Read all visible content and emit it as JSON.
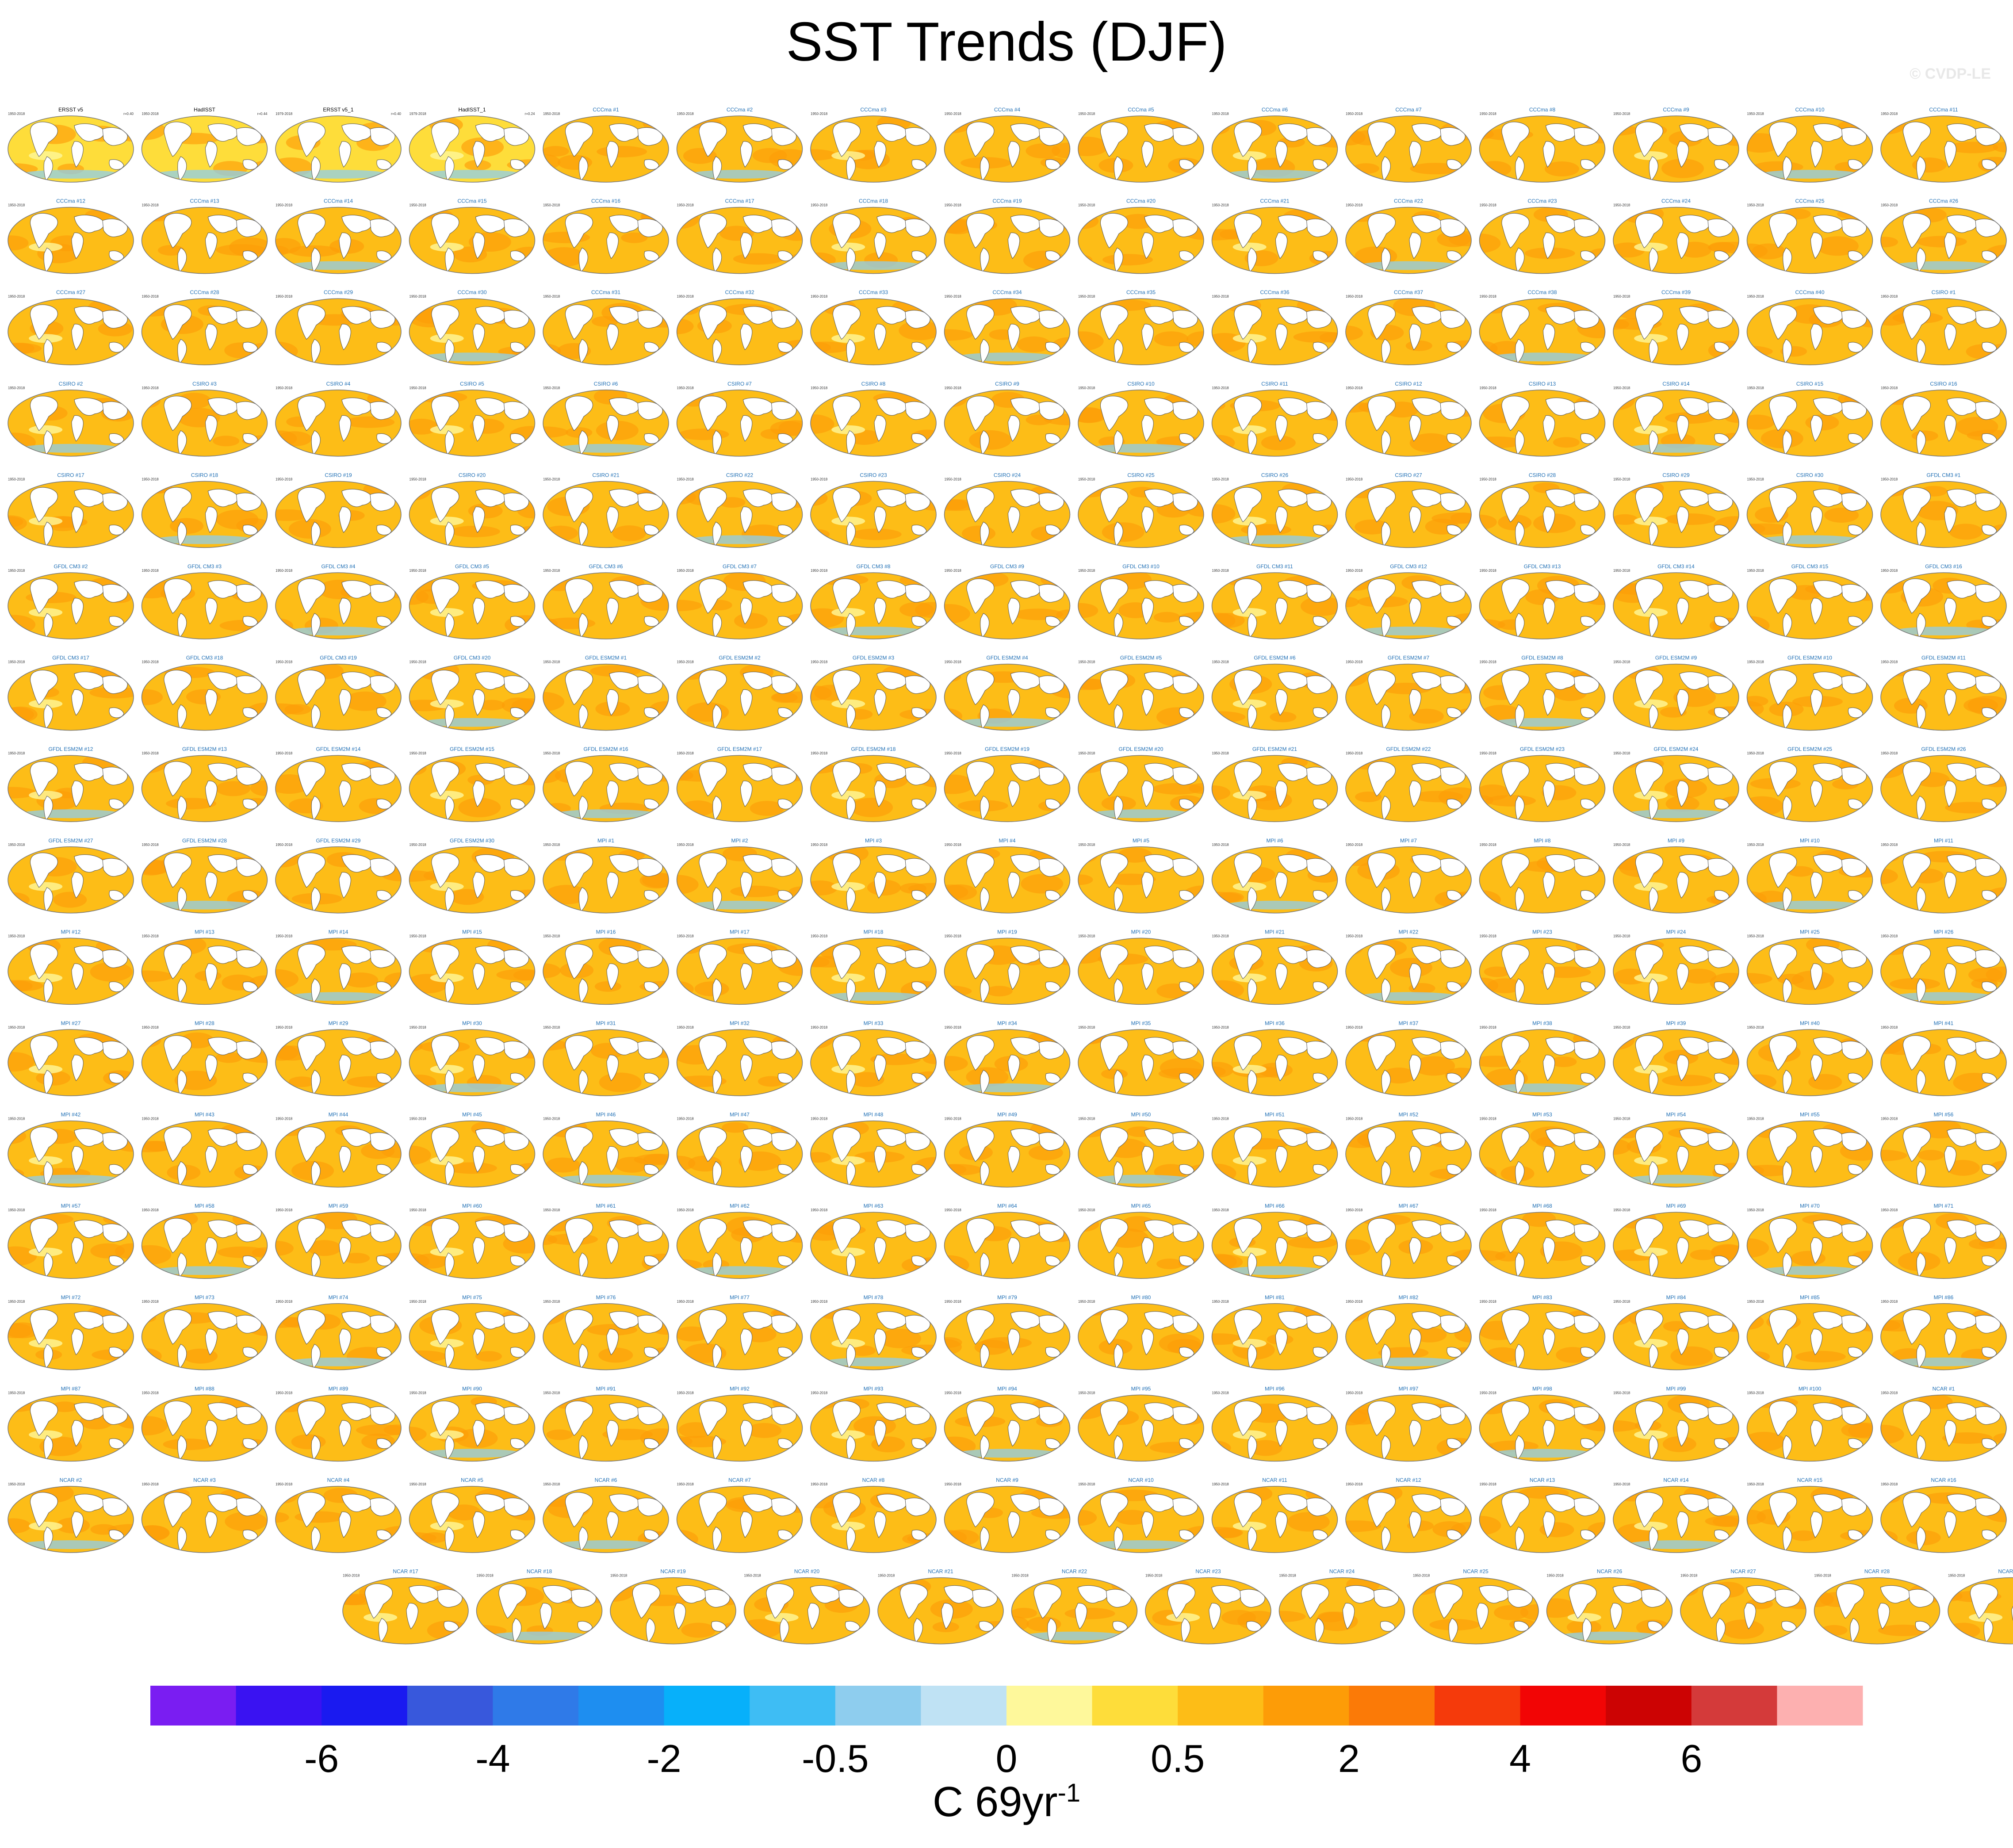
{
  "page": {
    "title": "SST Trends (DJF)",
    "copyright": "© CVDP-LE",
    "unit_prefix": "C 69yr",
    "unit_sup": "-1"
  },
  "colors": {
    "land": "#ffffff",
    "coast": "#555555",
    "obs_label": "#000000",
    "model_label": "#1f6fb5",
    "model_label_light": "#d9c24a"
  },
  "panels": {
    "observations": [
      {
        "label": "ERSST v5",
        "years": "1950-2018",
        "value": "0.40"
      },
      {
        "label": "HadISST",
        "years": "1950-2018",
        "value": "0.44"
      },
      {
        "label": "ERSST v5_1",
        "years": "1979-2018",
        "value": "0.40"
      },
      {
        "label": "HadISST_1",
        "years": "1979-2018",
        "value": "0.24"
      }
    ],
    "ensembles": [
      {
        "name": "CCCma",
        "count": 40,
        "years": "1950-2018"
      },
      {
        "name": "CSIRO",
        "count": 30,
        "years": "1950-2018"
      },
      {
        "name": "GFDL CM3",
        "count": 20,
        "years": "1950-2018"
      },
      {
        "name": "GFDL ESM2M",
        "count": 30,
        "years": "1950-2018"
      },
      {
        "name": "MPI",
        "count": 100,
        "years": "1950-2018"
      },
      {
        "name": "NCAR",
        "count": 40,
        "years": "1950-2018"
      },
      {
        "name": "SMHI_KNMI",
        "count": 16,
        "years": "1950-2018"
      }
    ],
    "columns": 15
  },
  "chart_data": {
    "type": "heatmap",
    "title": "SST Trends (DJF)",
    "colorbar": {
      "colors": [
        "#7a1df2",
        "#3a12f2",
        "#1a1af0",
        "#3858dc",
        "#2f7ae8",
        "#1e8ef0",
        "#07b0fa",
        "#3ebdf4",
        "#8ecdee",
        "#bfe2f4",
        "#fef89b",
        "#fedd3a",
        "#fdbd17",
        "#fd9c07",
        "#fb7a07",
        "#f53a0b",
        "#f20505",
        "#cc0303",
        "#d43a3a",
        "#fdb0b0"
      ],
      "tick_labels": [
        "-6",
        "-4",
        "-2",
        "-0.5",
        "0",
        "0.5",
        "2",
        "4",
        "6"
      ],
      "tick_boundary_index": [
        2,
        4,
        6,
        8,
        10,
        12,
        14,
        16,
        18
      ],
      "unit": "C 69yr-1"
    }
  }
}
